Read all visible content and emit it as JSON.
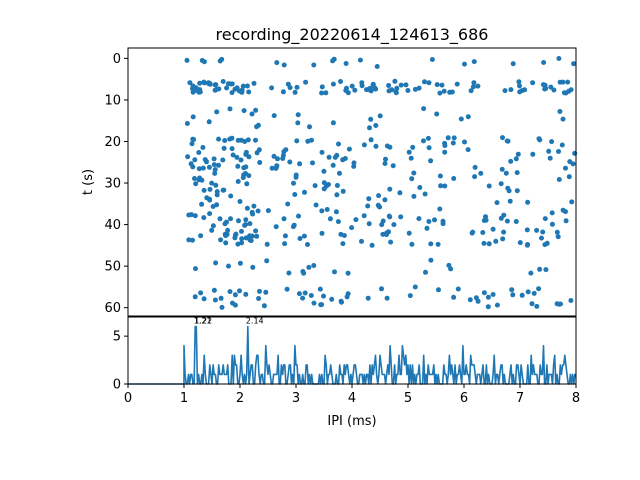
{
  "chart_data": [
    {
      "type": "scatter",
      "title": "recording_20220614_124613_686",
      "xlabel": "",
      "ylabel": "t (s)",
      "xlim": [
        0,
        8
      ],
      "ylim": [
        62,
        -2.5
      ],
      "y_inverted": true,
      "yticks": [
        "0",
        "10",
        "20",
        "30",
        "40",
        "50",
        "60"
      ],
      "color": "#1f77b4",
      "points_count": 500,
      "x_range_observed": [
        1.0,
        8.0
      ],
      "y_range_observed": [
        0,
        60
      ]
    },
    {
      "type": "line",
      "xlabel": "IPI (ms)",
      "ylabel": "",
      "xlim": [
        0,
        8
      ],
      "ylim": [
        0,
        7
      ],
      "xticks": [
        "0",
        "1",
        "2",
        "3",
        "4",
        "5",
        "6",
        "7",
        "8"
      ],
      "yticks": [
        "0",
        "5"
      ],
      "color": "#1f77b4",
      "annotations": [
        {
          "text": "1.21",
          "x": 1.21,
          "y": 6.2
        },
        {
          "text": "1.22",
          "x": 1.22,
          "y": 6.2
        },
        {
          "text": "2.14",
          "x": 2.14,
          "y": 6.2
        }
      ],
      "zero_until": 1.0
    }
  ]
}
